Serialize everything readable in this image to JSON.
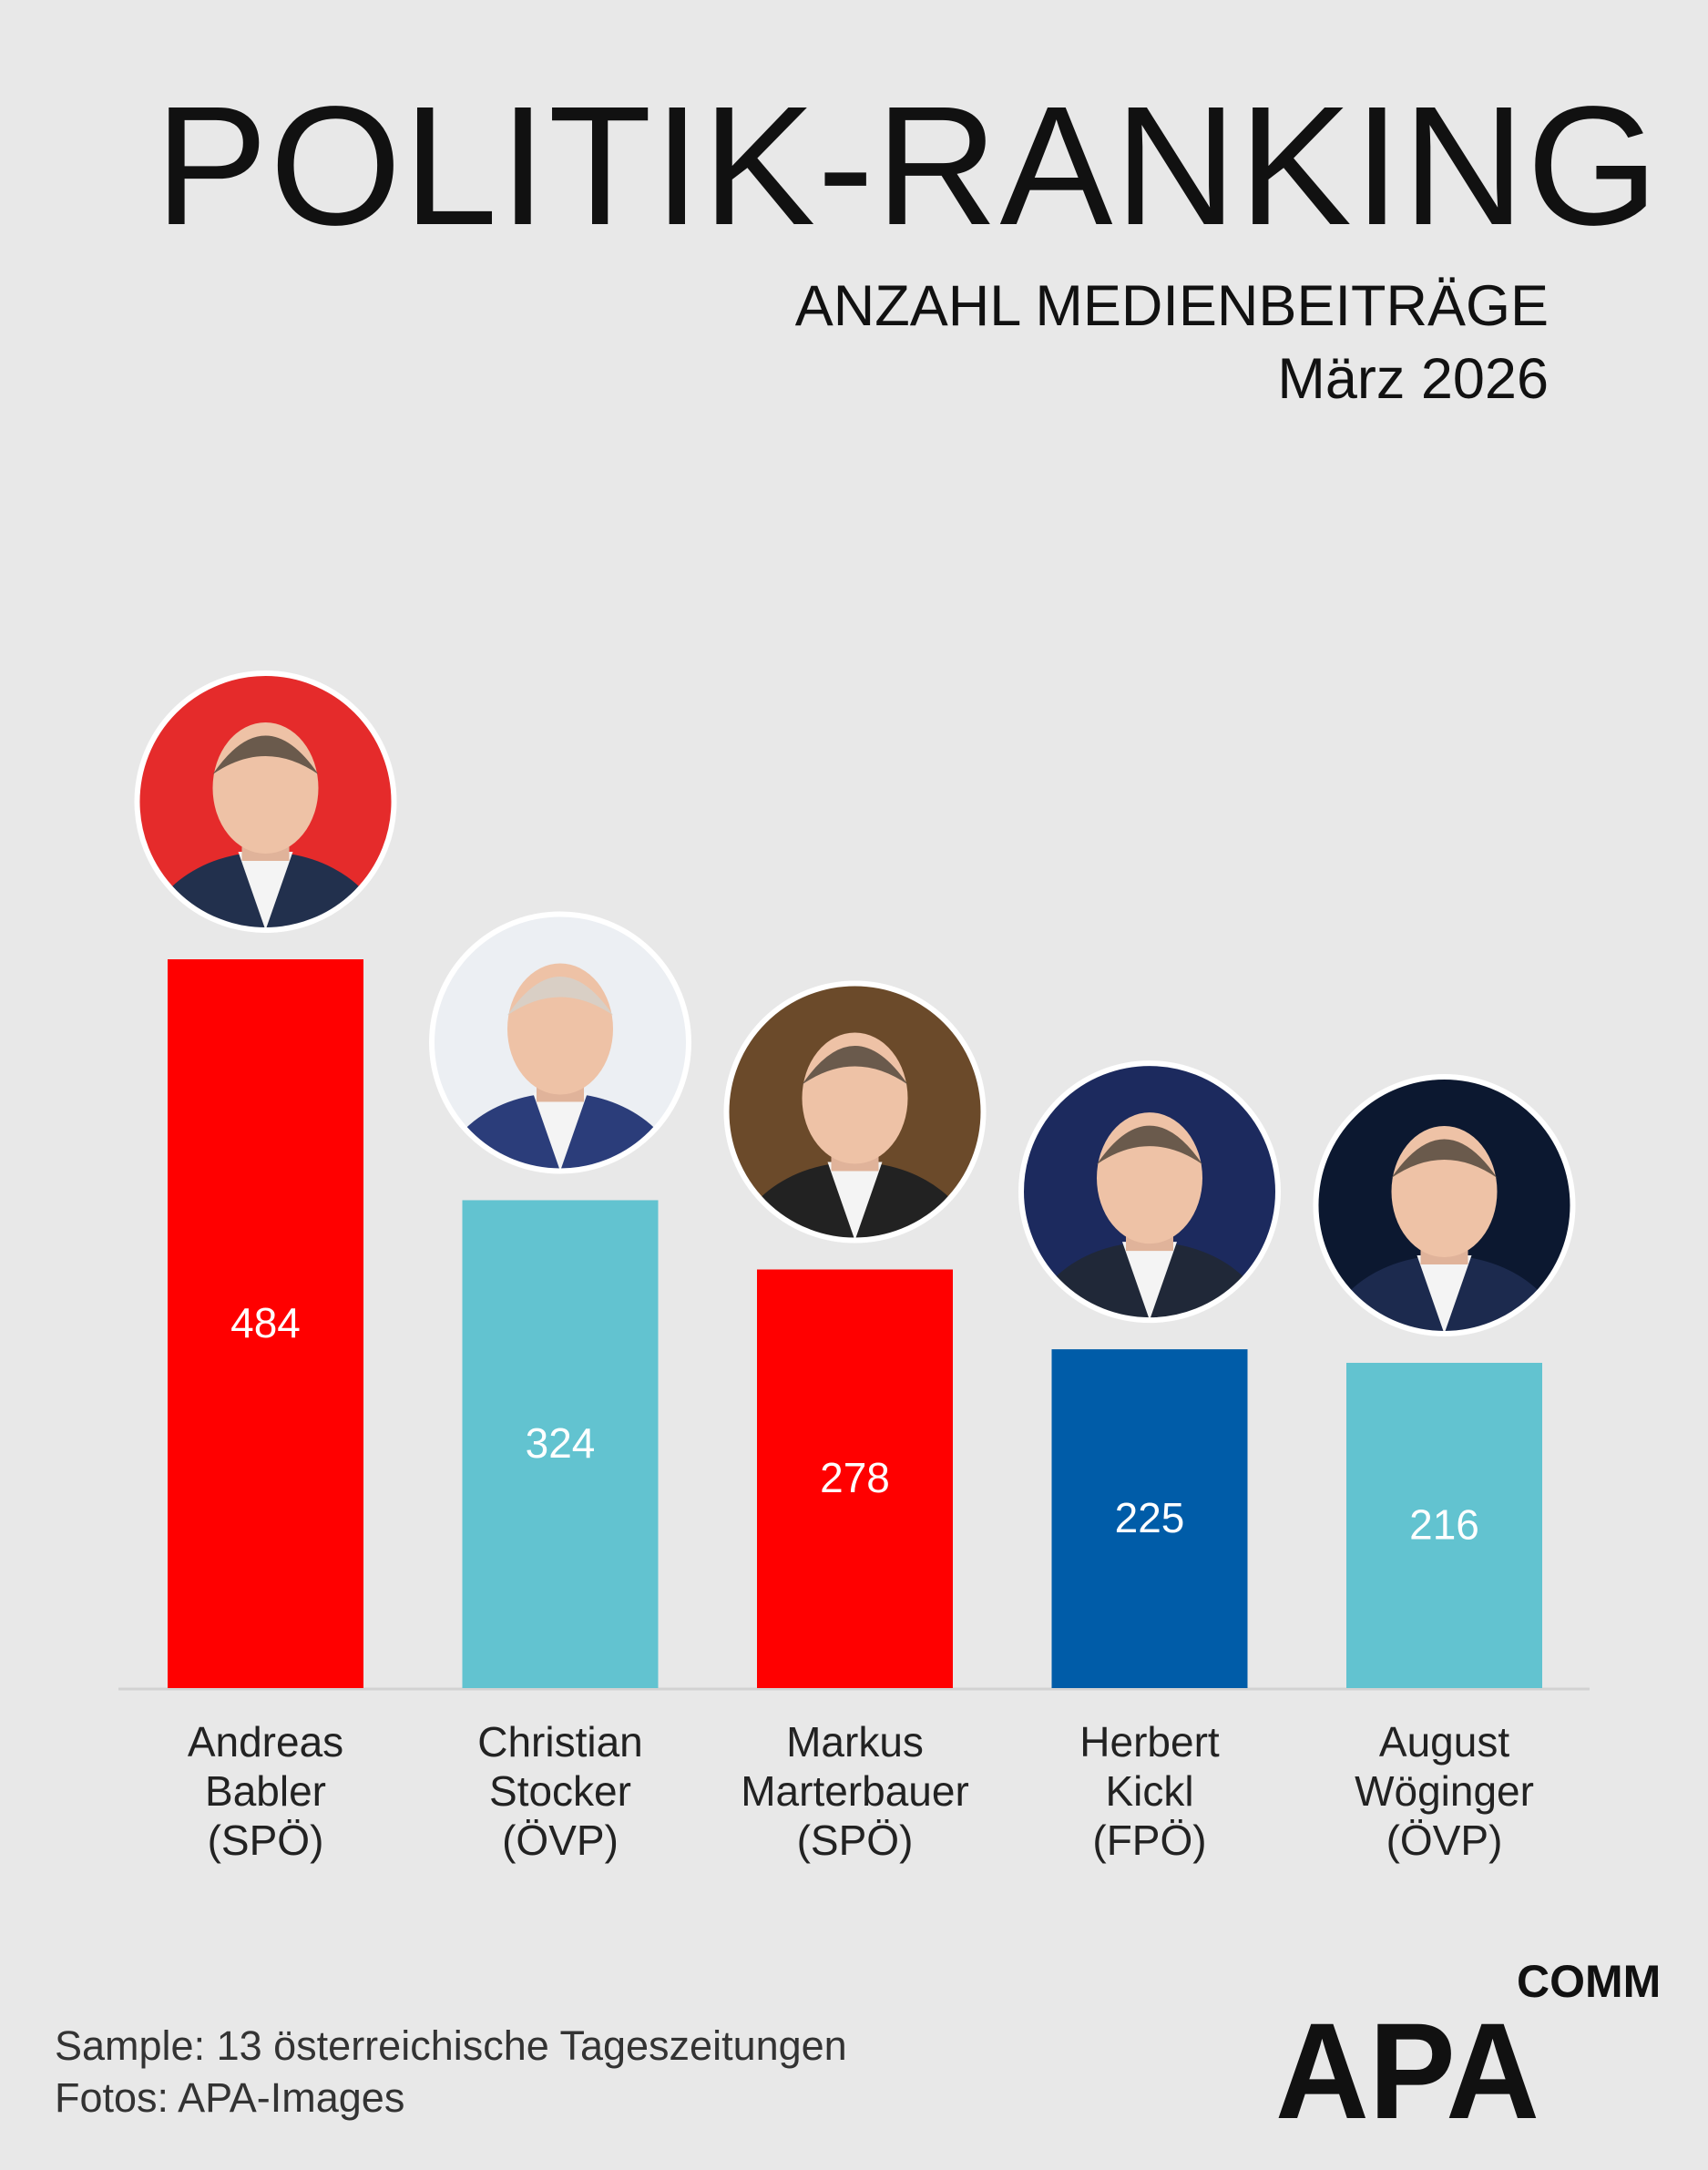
{
  "header": {
    "title": "POLITIK-RANKING",
    "subtitle_line1": "ANZAHL MEDIENBEITRÄGE",
    "subtitle_line2": "März 2026"
  },
  "chart_data": {
    "type": "bar",
    "title": "POLITIK-RANKING",
    "subtitle": "ANZAHL MEDIENBEITRÄGE, März 2026",
    "categories": [
      [
        "Andreas",
        "Babler",
        "(SPÖ)"
      ],
      [
        "Christian",
        "Stocker",
        "(ÖVP)"
      ],
      [
        "Markus",
        "Marterbauer",
        "(SPÖ)"
      ],
      [
        "Herbert",
        "Kickl",
        "(FPÖ)"
      ],
      [
        "August",
        "Wöginger",
        "(ÖVP)"
      ]
    ],
    "values": [
      484,
      324,
      278,
      225,
      216
    ],
    "colors": [
      "#ff0000",
      "#62c3d0",
      "#ff0000",
      "#005ca8",
      "#62c3d0"
    ],
    "ylim": [
      0,
      484
    ],
    "xlabel": "",
    "ylabel": "",
    "grid": false,
    "legend": "none"
  },
  "photos": [
    "portrait-andreas-babler",
    "portrait-christian-stocker",
    "portrait-markus-marterbauer",
    "portrait-herbert-kickl",
    "portrait-august-woeginger"
  ],
  "footer": {
    "sample": "Sample: 13 österreichische Tageszeitungen",
    "photos": "Fotos: APA-Images"
  },
  "logo": {
    "brand": "APA",
    "sub": "COMM",
    "color": "#111111"
  }
}
